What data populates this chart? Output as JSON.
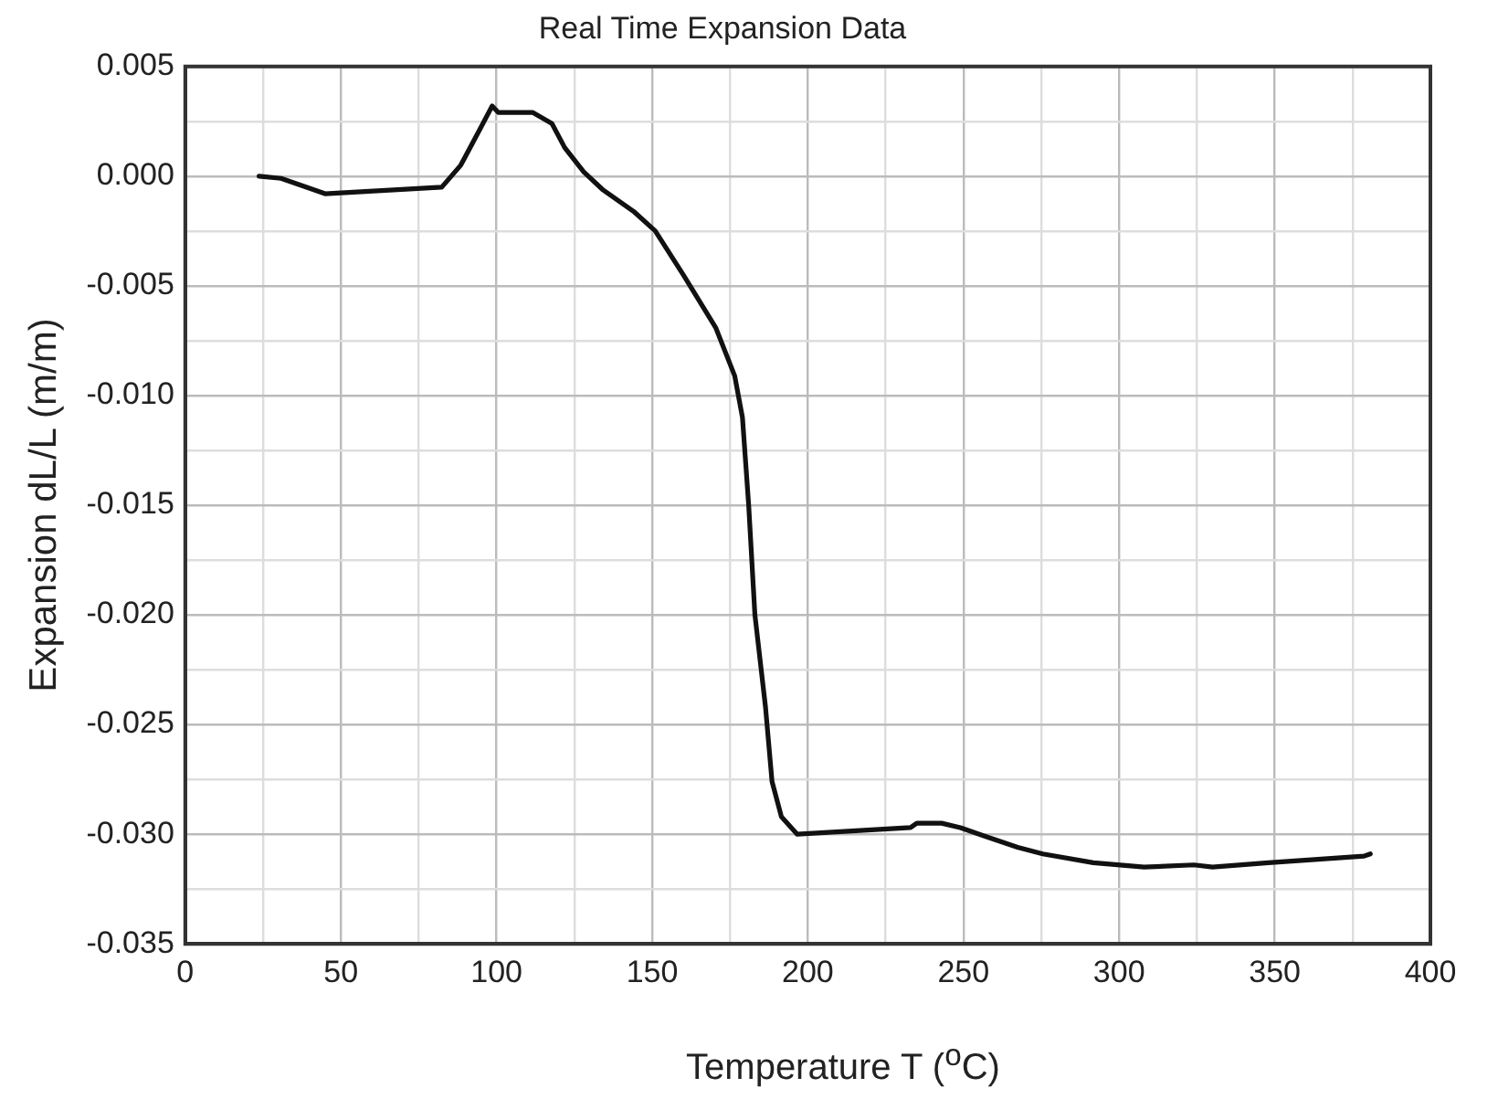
{
  "chart_data": {
    "type": "line",
    "title": "Real Time Expansion Data",
    "xlabel": "Temperature T ($^{o}$C)",
    "ylabel": "Expansion dL/L (m/m)",
    "xlim": [
      0,
      400
    ],
    "xticks": [
      0,
      {
        "value": 25,
        "label": null
      },
      50,
      {
        "value": 75,
        "label": null
      },
      100,
      {
        "value": 125,
        "label": null
      },
      150,
      {
        "value": 175,
        "label": null
      },
      200,
      {
        "value": 225,
        "label": null
      },
      250,
      {
        "value": 275,
        "label": null
      },
      300,
      {
        "value": 325,
        "label": null
      },
      350,
      {
        "value": 375,
        "label": null
      },
      400
    ],
    "ylim": [
      -0.035,
      0.005
    ],
    "yticks": [
      -0.035,
      {
        "value": -0.0325,
        "label": null
      },
      {
        "value": -0.03,
        "label": "-0.030"
      },
      {
        "value": -0.0275,
        "label": null
      },
      -0.025,
      {
        "value": -0.0225,
        "label": null
      },
      {
        "value": -0.02,
        "label": "-0.020"
      },
      {
        "value": -0.0175,
        "label": null
      },
      -0.015,
      {
        "value": -0.0125,
        "label": null
      },
      {
        "value": -0.01,
        "label": "-0.010"
      },
      {
        "value": -0.0075,
        "label": null
      },
      -0.005,
      {
        "value": -0.0025,
        "label": null
      },
      {
        "value": 0,
        "label": "0.000"
      },
      {
        "value": 0.0025,
        "label": null
      },
      0.005
    ],
    "grid": true,
    "legend": false,
    "marker": "none",
    "line_style": "solid",
    "x": [
      23.7,
      30.8,
      44.9,
      82.4,
      88.5,
      94.5,
      98.6,
      100.6,
      111.7,
      117.8,
      121.9,
      128,
      134,
      144,
      151,
      160,
      170.4,
      176.5,
      179,
      181,
      183,
      186.4,
      188.5,
      191.5,
      196.6,
      233,
      235,
      243,
      249,
      257,
      267.4,
      275.5,
      291.7,
      308,
      324,
      330,
      348,
      378.7,
      380.7
    ],
    "series": [
      {
        "color": "#111111",
        "values": [
          0,
          -0.0001,
          -0.0008,
          -0.0005,
          0.0005,
          0.0021,
          0.0032,
          0.0029,
          0.0029,
          0.0024,
          0.0013,
          0.0002,
          -0.0006,
          -0.0016,
          -0.0025,
          -0.0045,
          -0.0069,
          -0.0091,
          -0.011,
          -0.015,
          -0.02,
          -0.0242,
          -0.0276,
          -0.0292,
          -0.03,
          -0.0297,
          -0.0295,
          -0.0295,
          -0.0297,
          -0.0301,
          -0.0306,
          -0.0309,
          -0.0313,
          -0.0315,
          -0.0314,
          -0.0315,
          -0.0313,
          -0.031,
          -0.0309
        ]
      }
    ]
  }
}
